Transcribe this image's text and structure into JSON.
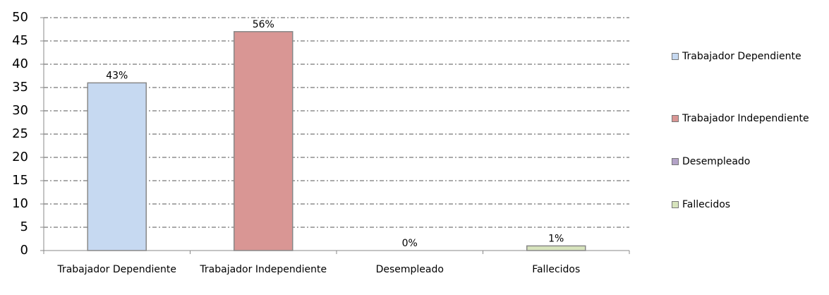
{
  "chart_data": {
    "type": "bar",
    "categories": [
      "Trabajador Dependiente",
      "Trabajador Independiente",
      "Desempleado",
      "Fallecidos"
    ],
    "values": [
      36,
      47,
      0,
      1
    ],
    "data_labels": [
      "43%",
      "56%",
      "0%",
      "1%"
    ],
    "colors": [
      "#c6d9f1",
      "#d99694",
      "#b3a2c7",
      "#d7e4bd"
    ],
    "ylim": [
      0,
      50
    ],
    "yticks": [
      0,
      5,
      10,
      15,
      20,
      25,
      30,
      35,
      40,
      45,
      50
    ],
    "grid": true,
    "legend": "right"
  }
}
